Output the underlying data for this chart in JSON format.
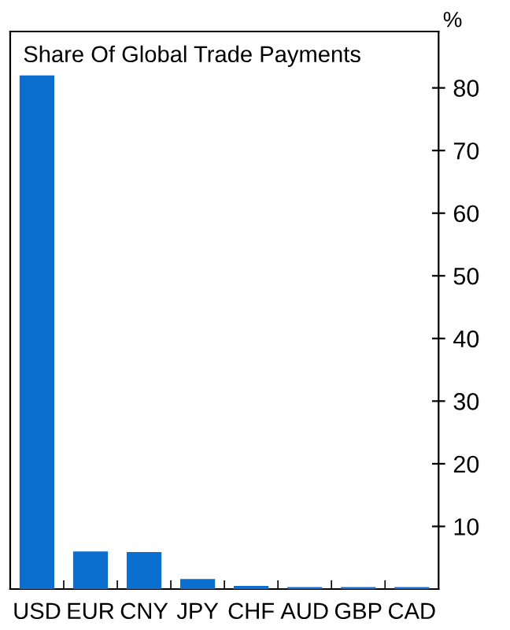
{
  "chart_data": {
    "type": "bar",
    "title": "Share Of Global Trade Payments",
    "ylabel": "%",
    "categories": [
      "USD",
      "EUR",
      "CNY",
      "JPY",
      "CHF",
      "AUD",
      "GBP",
      "CAD"
    ],
    "values": [
      82,
      6,
      5.9,
      1.6,
      0.5,
      0.3,
      0.3,
      0.3
    ],
    "color": "#0b6fd0",
    "ylim": [
      0,
      89
    ],
    "yticks": [
      10,
      20,
      30,
      40,
      50,
      60,
      70,
      80
    ],
    "grid": false,
    "legend": false
  }
}
